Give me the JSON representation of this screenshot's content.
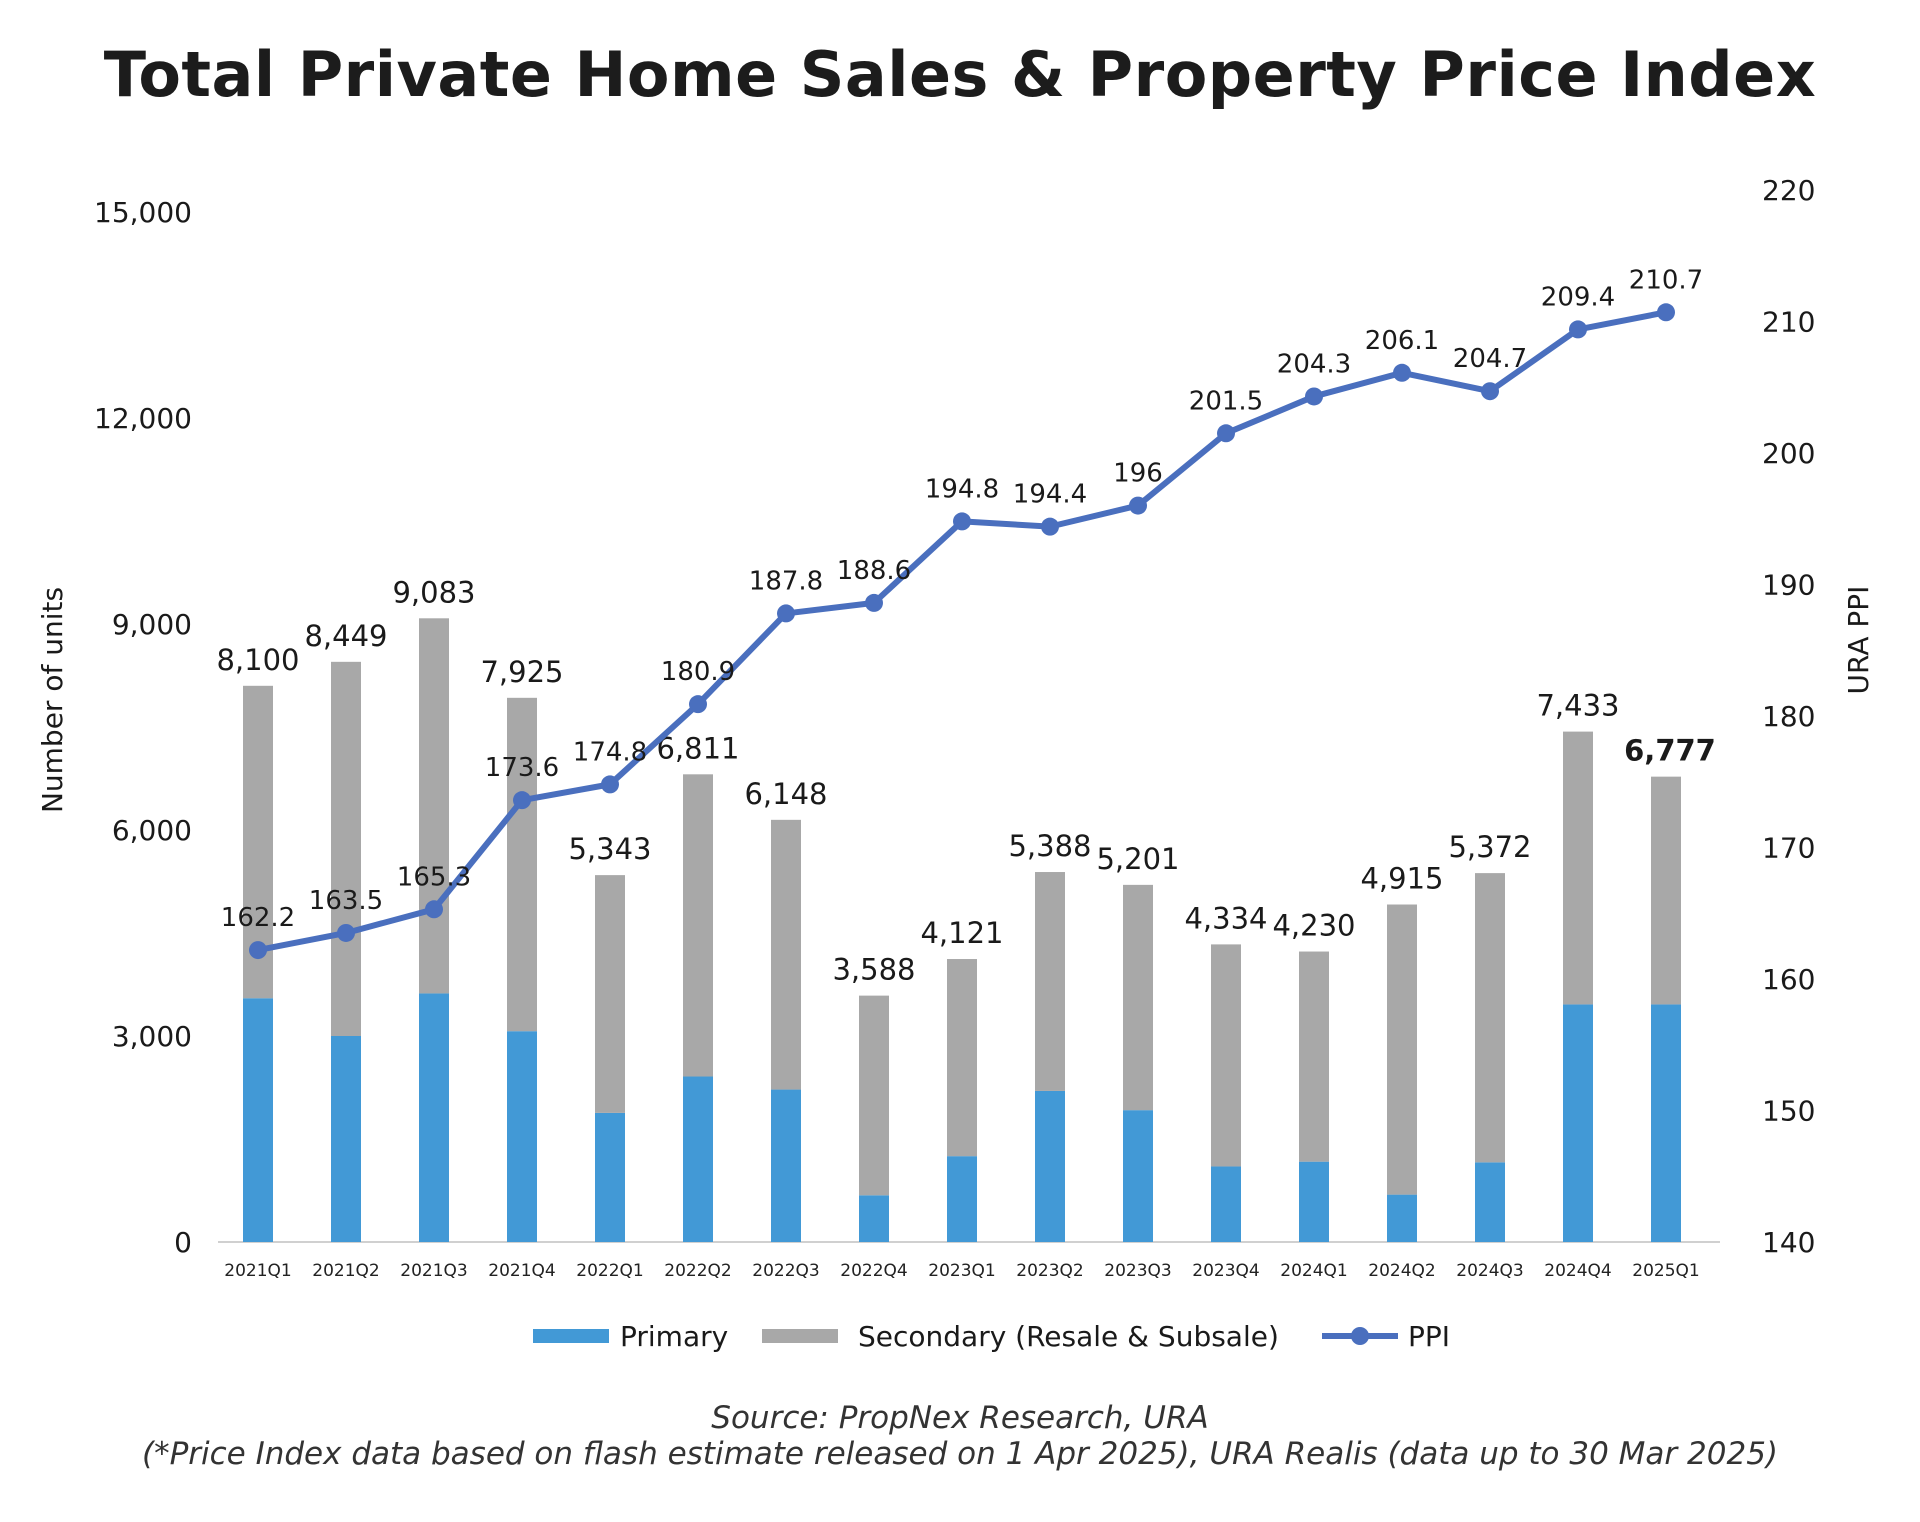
{
  "title": "Total Private Home Sales & Property Price Index",
  "source_line1": "Source: PropNex Research, URA",
  "source_line2": "(*Price Index data based on flash estimate released on 1 Apr 2025), URA Realis (data up to 30 Mar 2025)",
  "colors": {
    "primary": "#4299d6",
    "secondary": "#a8a8a8",
    "ppi": "#4a6fbe"
  },
  "chart_data": {
    "type": "bar",
    "title": "Total Private Home Sales & Property Price Index",
    "categories": [
      "2021Q1",
      "2021Q2",
      "2021Q3",
      "2021Q4",
      "2022Q1",
      "2022Q2",
      "2022Q3",
      "2022Q4",
      "2023Q1",
      "2023Q2",
      "2023Q3",
      "2023Q4",
      "2024Q1",
      "2024Q2",
      "2024Q3",
      "2024Q4",
      "2025Q1"
    ],
    "series": [
      {
        "name": "Primary",
        "kind": "stacked-bar",
        "values": [
          3550,
          3000,
          3620,
          3070,
          1880,
          2410,
          2220,
          680,
          1250,
          2200,
          1920,
          1100,
          1170,
          690,
          1160,
          3460,
          3460
        ]
      },
      {
        "name": "Secondary (Resale & Subsale)",
        "kind": "stacked-bar",
        "values": [
          4550,
          5449,
          5463,
          4855,
          3463,
          4401,
          3928,
          2908,
          2871,
          3188,
          3281,
          3234,
          3060,
          4225,
          4212,
          3973,
          3317
        ]
      }
    ],
    "totals": [
      8100,
      8449,
      9083,
      7925,
      5343,
      6811,
      6148,
      3588,
      4121,
      5388,
      5201,
      4334,
      4230,
      4915,
      5372,
      7433,
      6777
    ],
    "total_labels": [
      "8,100",
      "8,449",
      "9,083",
      "7,925",
      "5,343",
      "6,811",
      "6,148",
      "3,588",
      "4,121",
      "5,388",
      "5,201",
      "4,334",
      "4,230",
      "4,915",
      "5,372",
      "7,433",
      "6,777"
    ],
    "ppi": {
      "name": "PPI",
      "kind": "line",
      "values": [
        162.2,
        163.5,
        165.3,
        173.6,
        174.8,
        180.9,
        187.8,
        188.6,
        194.8,
        194.4,
        196,
        201.5,
        204.3,
        206.1,
        204.7,
        209.4,
        210.7
      ],
      "labels": [
        "162.2",
        "163.5",
        "165.3",
        "173.6",
        "174.8",
        "180.9",
        "187.8",
        "188.6",
        "194.8",
        "194.4",
        "196",
        "201.5",
        "204.3",
        "206.1",
        "204.7",
        "209.4",
        "210.7"
      ]
    },
    "y_left": {
      "label": "Number of units",
      "min": 0,
      "max": 15000,
      "ticks": [
        0,
        3000,
        6000,
        9000,
        12000,
        15000
      ],
      "tick_labels": [
        "0",
        "3,000",
        "6,000",
        "9,000",
        "12,000",
        "15,000"
      ]
    },
    "y_right": {
      "label": "URA PPI",
      "min": 140,
      "max": 220,
      "ticks": [
        140,
        150,
        160,
        170,
        180,
        190,
        200,
        210,
        220
      ],
      "tick_labels": [
        "140",
        "150",
        "160",
        "170",
        "180",
        "190",
        "200",
        "210",
        "220"
      ]
    },
    "legend": {
      "position": "bottom",
      "items": [
        "Primary",
        "Secondary (Resale & Subsale)",
        "PPI"
      ]
    },
    "highlight_last_label": true
  }
}
